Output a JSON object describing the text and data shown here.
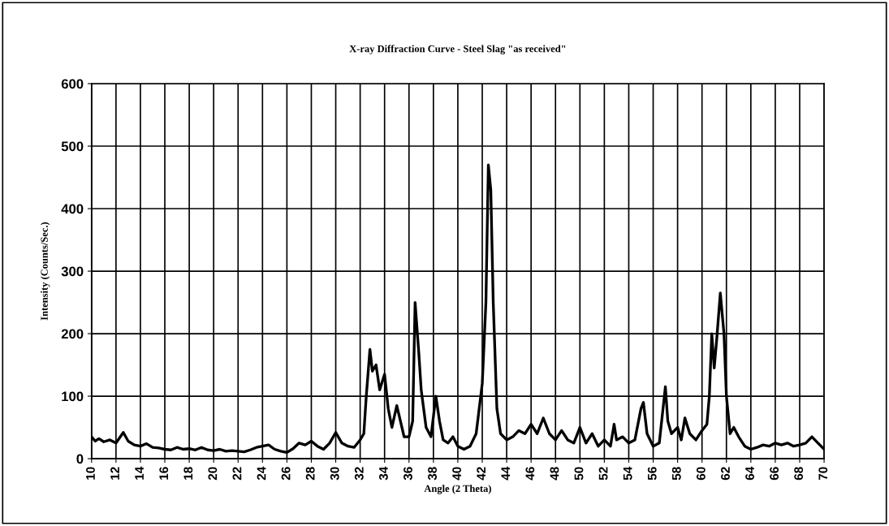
{
  "chart_data": {
    "type": "line",
    "title": "X-ray Diffraction Curve - Steel Slag \"as received\"",
    "xlabel": "Angle (2 Theta)",
    "ylabel": "Intensity (Counts/Sec.)",
    "x": [
      10,
      10.3,
      10.6,
      11,
      11.5,
      12,
      12.6,
      13,
      13.5,
      14,
      14.5,
      15,
      15.5,
      16,
      16.5,
      17,
      17.5,
      18,
      18.5,
      19,
      19.5,
      20,
      20.5,
      21,
      21.5,
      22,
      22.5,
      23,
      23.5,
      24,
      24.5,
      25,
      25.5,
      26,
      26.5,
      27,
      27.5,
      28,
      28.5,
      29,
      29.5,
      30,
      30.5,
      31,
      31.5,
      32,
      32.3,
      32.5,
      32.8,
      33,
      33.3,
      33.6,
      34,
      34.3,
      34.6,
      35,
      35.3,
      35.6,
      36,
      36.3,
      36.5,
      36.8,
      37,
      37.4,
      37.8,
      38.2,
      38.5,
      38.8,
      39.2,
      39.6,
      40,
      40.5,
      41,
      41.5,
      42,
      42.3,
      42.5,
      42.7,
      42.9,
      43.2,
      43.5,
      44,
      44.5,
      45,
      45.5,
      46,
      46.5,
      47,
      47.5,
      48,
      48.5,
      49,
      49.5,
      50,
      50.5,
      51,
      51.5,
      52,
      52.5,
      52.8,
      53,
      53.5,
      54,
      54.5,
      55,
      55.2,
      55.5,
      56,
      56.5,
      57,
      57.2,
      57.5,
      58,
      58.3,
      58.6,
      59,
      59.5,
      60,
      60.4,
      60.6,
      60.8,
      61,
      61.2,
      61.5,
      61.8,
      62,
      62.3,
      62.6,
      63,
      63.5,
      64,
      64.5,
      65,
      65.5,
      66,
      66.5,
      67,
      67.5,
      68,
      68.5,
      69,
      69.5,
      70
    ],
    "series": [
      {
        "color": "#000000",
        "values": [
          35,
          28,
          32,
          27,
          30,
          25,
          42,
          28,
          22,
          20,
          24,
          18,
          17,
          15,
          14,
          18,
          15,
          16,
          14,
          18,
          14,
          13,
          15,
          12,
          13,
          12,
          11,
          14,
          18,
          20,
          22,
          15,
          12,
          10,
          16,
          25,
          22,
          28,
          20,
          15,
          25,
          42,
          25,
          20,
          18,
          30,
          40,
          100,
          175,
          140,
          150,
          110,
          135,
          80,
          50,
          85,
          60,
          35,
          35,
          60,
          250,
          170,
          110,
          50,
          35,
          100,
          60,
          30,
          25,
          35,
          20,
          15,
          20,
          40,
          120,
          250,
          470,
          430,
          250,
          80,
          40,
          30,
          35,
          45,
          40,
          55,
          40,
          65,
          40,
          30,
          45,
          30,
          25,
          50,
          25,
          40,
          20,
          30,
          20,
          55,
          30,
          35,
          25,
          30,
          80,
          90,
          40,
          20,
          25,
          115,
          60,
          40,
          50,
          30,
          65,
          40,
          30,
          45,
          55,
          100,
          200,
          145,
          190,
          265,
          200,
          100,
          40,
          50,
          35,
          20,
          15,
          18,
          22,
          20,
          25,
          22,
          25,
          20,
          22,
          25,
          35,
          25,
          15
        ]
      }
    ],
    "xlim": [
      10,
      70
    ],
    "xticks": [
      10,
      12,
      14,
      16,
      18,
      20,
      22,
      24,
      26,
      28,
      30,
      32,
      34,
      36,
      38,
      40,
      42,
      44,
      46,
      48,
      50,
      52,
      54,
      56,
      58,
      60,
      62,
      64,
      66,
      68,
      70
    ],
    "ylim": [
      0,
      600
    ],
    "yticks": [
      0,
      100,
      200,
      300,
      400,
      500,
      600
    ],
    "grid": true,
    "legend": false,
    "marker": "none",
    "line_style": "solid"
  }
}
